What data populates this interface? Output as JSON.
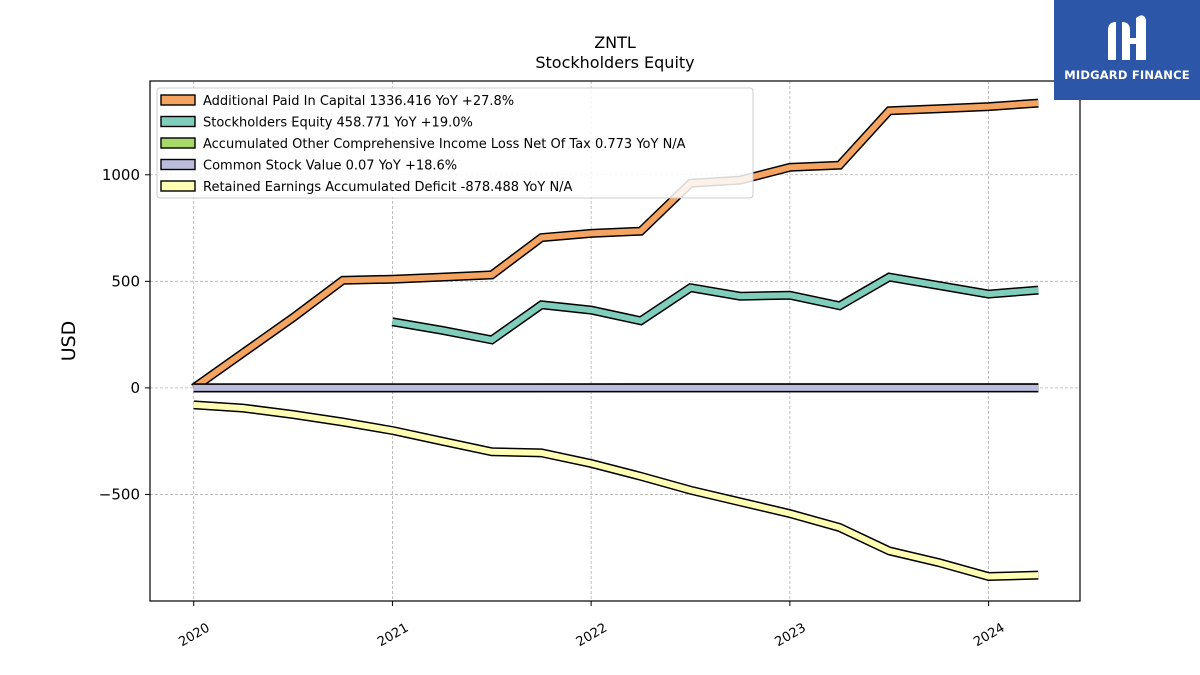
{
  "chart_data": {
    "type": "line",
    "title": "ZNTL",
    "subtitle": "Stockholders  Equity",
    "xlabel": "",
    "ylabel": "USD",
    "xlim": [
      2019.78,
      2024.46
    ],
    "ylim": [
      -1000,
      1440
    ],
    "x_ticks": [
      2020,
      2021,
      2022,
      2023,
      2024
    ],
    "x_tick_labels": [
      "2020",
      "2021",
      "2022",
      "2023",
      "2024"
    ],
    "y_ticks": [
      -500,
      0,
      500,
      1000
    ],
    "y_tick_labels": [
      "−500",
      "0",
      "500",
      "1000"
    ],
    "grid": true,
    "legend_position": "upper-left",
    "series": [
      {
        "name": "Additional Paid In Capital",
        "legend": "Additional Paid In Capital  1336.416 YoY +27.8%",
        "color": "#f4a460",
        "x": [
          2020.0,
          2020.25,
          2020.5,
          2020.75,
          2021.0,
          2021.25,
          2021.5,
          2021.75,
          2022.0,
          2022.25,
          2022.5,
          2022.75,
          2023.0,
          2023.25,
          2023.5,
          2023.75,
          2024.0,
          2024.25
        ],
        "values": [
          0,
          165,
          330,
          505,
          510,
          520,
          530,
          705,
          725,
          735,
          960,
          975,
          1035,
          1045,
          1300,
          1310,
          1320,
          1336.416
        ]
      },
      {
        "name": "Stockholders Equity",
        "legend": "Stockholders Equity  458.771 YoY +19.0%",
        "color": "#7fcdbb",
        "x": [
          2021.0,
          2021.25,
          2021.5,
          2021.75,
          2022.0,
          2022.25,
          2022.5,
          2022.75,
          2023.0,
          2023.25,
          2023.5,
          2023.75,
          2024.0,
          2024.25
        ],
        "values": [
          310,
          270,
          225,
          390,
          365,
          315,
          470,
          430,
          435,
          385,
          520,
          480,
          440,
          458.771
        ]
      },
      {
        "name": "Accumulated Other Comprehensive Income Loss Net Of Tax",
        "legend": "Accumulated Other Comprehensive Income Loss Net Of Tax  0.773 YoY N/A",
        "color": "#a6d96a",
        "x": [
          2020.0,
          2024.25
        ],
        "values": [
          0,
          0.773
        ]
      },
      {
        "name": "Common Stock Value",
        "legend": "Common Stock Value  0.07 YoY +18.6%",
        "color": "#bcbddc",
        "x": [
          2020.0,
          2020.5,
          2021.0,
          2021.5,
          2022.0,
          2022.5,
          2023.0,
          2023.5,
          2024.0,
          2024.25
        ],
        "values": [
          0,
          0,
          0,
          0,
          0,
          0,
          0,
          0,
          0.05,
          0.07
        ]
      },
      {
        "name": "Retained Earnings Accumulated Deficit",
        "legend": "Retained Earnings Accumulated Deficit  -878.488 YoY N/A",
        "color": "#ffffb3",
        "x": [
          2020.0,
          2020.25,
          2020.5,
          2020.75,
          2021.0,
          2021.25,
          2021.5,
          2021.75,
          2022.0,
          2022.25,
          2022.5,
          2022.75,
          2023.0,
          2023.25,
          2023.5,
          2023.75,
          2024.0,
          2024.25
        ],
        "values": [
          -80,
          -95,
          -125,
          -160,
          -200,
          -250,
          -300,
          -305,
          -355,
          -415,
          -480,
          -535,
          -590,
          -655,
          -765,
          -820,
          -885,
          -878.488
        ]
      }
    ]
  },
  "logo": {
    "text": "MIDGARD FINANCE",
    "icon": "midgard-logo-icon",
    "background": "#2c57a8"
  }
}
